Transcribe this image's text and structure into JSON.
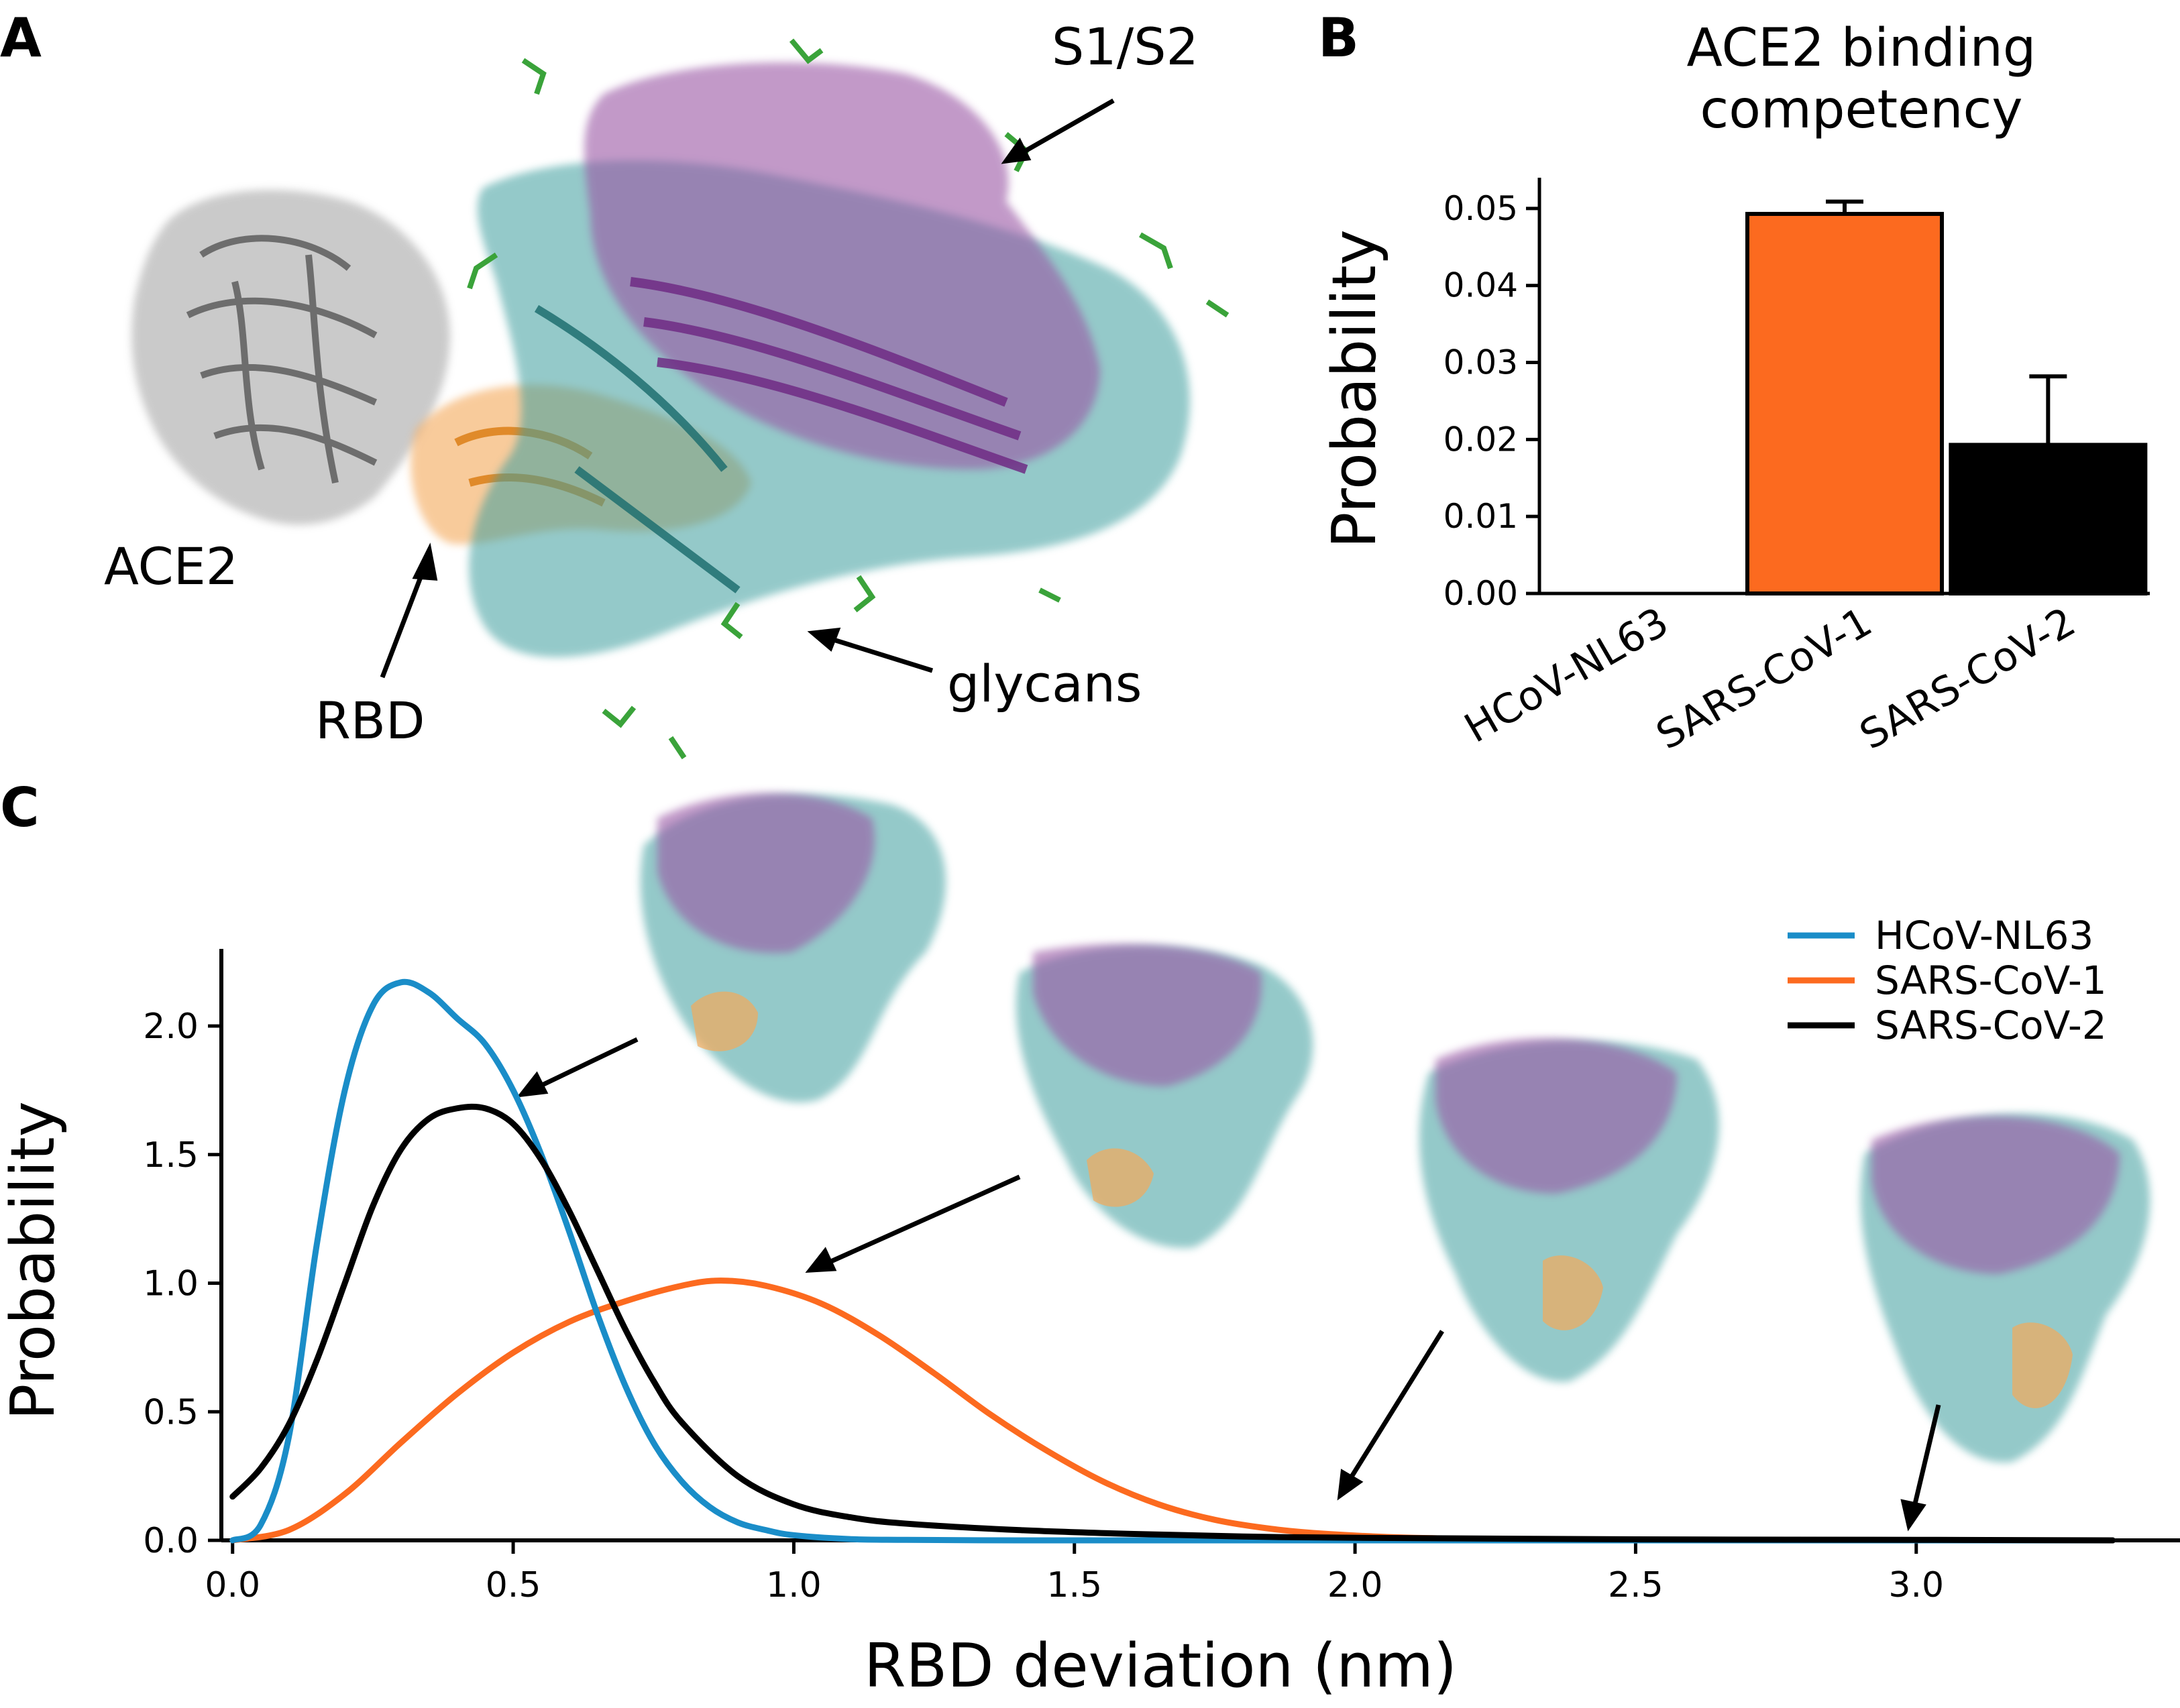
{
  "panels": {
    "A": {
      "letter": "A",
      "labels": {
        "ace2": "ACE2",
        "rbd": "RBD",
        "glycans": "glycans",
        "s1s2": "S1/S2"
      }
    },
    "B": {
      "letter": "B"
    },
    "C": {
      "letter": "C"
    }
  },
  "colors": {
    "hcov_nl63": "#1a8dc8",
    "sars_cov_1": "#fc6a1f",
    "sars_cov_2": "#000000",
    "ace2_surface": "#b9b9b9",
    "rbd_orange": "#f4a95a",
    "spike_teal": "#3c9e9e",
    "spike_purple": "#9a56a4",
    "glycan_green": "#3aa33a"
  },
  "chart_data": [
    {
      "panel": "B",
      "type": "bar",
      "title": "ACE2 binding competency",
      "title_lines": [
        "ACE2 binding",
        "competency"
      ],
      "ylabel": "Probability",
      "xlabel": "",
      "ylim": [
        0,
        0.054
      ],
      "yticks": [
        "0.00",
        "0.01",
        "0.02",
        "0.03",
        "0.04",
        "0.05"
      ],
      "categories": [
        "HCoV-NL63",
        "SARS-CoV-1",
        "SARS-CoV-2"
      ],
      "values": [
        0.0,
        0.0493,
        0.0193
      ],
      "errors": [
        0.0,
        0.0016,
        0.0089
      ],
      "bar_colors": [
        "#ffffff",
        "#fc6a1f",
        "#000000"
      ]
    },
    {
      "panel": "C",
      "type": "line",
      "xlabel": "RBD deviation (nm)",
      "ylabel": "Probability",
      "xlim": [
        -0.02,
        3.47
      ],
      "ylim": [
        0,
        2.3
      ],
      "xticks": [
        "0.0",
        "0.5",
        "1.0",
        "1.5",
        "2.0",
        "2.5",
        "3.0"
      ],
      "yticks": [
        "0.0",
        "0.5",
        "1.0",
        "1.5",
        "2.0"
      ],
      "legend": "top-right",
      "series": [
        {
          "name": "HCoV-NL63",
          "color": "#1a8dc8",
          "x": [
            0.0,
            0.05,
            0.1,
            0.15,
            0.2,
            0.25,
            0.3,
            0.35,
            0.4,
            0.45,
            0.5,
            0.55,
            0.6,
            0.65,
            0.7,
            0.75,
            0.8,
            0.85,
            0.9,
            0.95,
            1.0,
            1.1,
            1.2,
            1.4,
            1.6,
            2.0,
            2.5,
            3.0,
            3.35
          ],
          "y": [
            0.0,
            0.06,
            0.4,
            1.15,
            1.75,
            2.08,
            2.17,
            2.13,
            2.03,
            1.93,
            1.75,
            1.5,
            1.2,
            0.88,
            0.6,
            0.38,
            0.23,
            0.13,
            0.07,
            0.04,
            0.02,
            0.005,
            0.002,
            0.0,
            0.0,
            0.0,
            0.0,
            0.0,
            0.0
          ]
        },
        {
          "name": "SARS-CoV-1",
          "color": "#fc6a1f",
          "x": [
            0.0,
            0.1,
            0.2,
            0.3,
            0.4,
            0.5,
            0.6,
            0.7,
            0.8,
            0.87,
            0.95,
            1.05,
            1.15,
            1.25,
            1.35,
            1.45,
            1.55,
            1.65,
            1.75,
            1.85,
            1.95,
            2.1,
            2.3,
            2.5,
            3.0,
            3.35
          ],
          "y": [
            0.0,
            0.04,
            0.18,
            0.38,
            0.57,
            0.73,
            0.85,
            0.93,
            0.99,
            1.01,
            0.99,
            0.92,
            0.8,
            0.65,
            0.49,
            0.35,
            0.23,
            0.14,
            0.08,
            0.045,
            0.025,
            0.01,
            0.004,
            0.001,
            0.0,
            0.0
          ]
        },
        {
          "name": "SARS-CoV-2",
          "color": "#000000",
          "x": [
            0.0,
            0.05,
            0.1,
            0.15,
            0.2,
            0.25,
            0.3,
            0.35,
            0.4,
            0.45,
            0.5,
            0.55,
            0.6,
            0.65,
            0.7,
            0.75,
            0.8,
            0.9,
            1.0,
            1.1,
            1.2,
            1.4,
            1.6,
            1.8,
            2.0,
            2.5,
            3.0,
            3.35
          ],
          "y": [
            0.17,
            0.28,
            0.45,
            0.7,
            1.0,
            1.3,
            1.52,
            1.64,
            1.68,
            1.68,
            1.62,
            1.48,
            1.28,
            1.05,
            0.82,
            0.62,
            0.46,
            0.25,
            0.14,
            0.09,
            0.065,
            0.04,
            0.025,
            0.015,
            0.01,
            0.004,
            0.002,
            0.0
          ]
        }
      ]
    }
  ]
}
